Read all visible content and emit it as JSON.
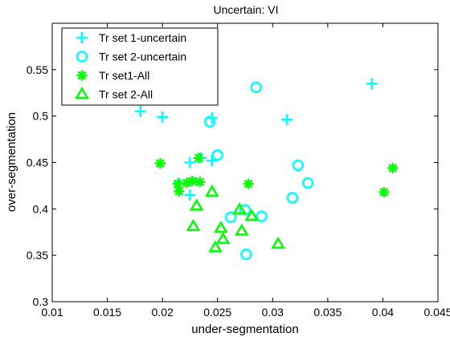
{
  "chart_data": {
    "type": "scatter",
    "title": "Uncertain: VI",
    "xlabel": "under-segmentation",
    "ylabel": "over-segmentation",
    "xlim": [
      0.01,
      0.045
    ],
    "ylim": [
      0.3,
      0.6
    ],
    "xticks": [
      0.01,
      0.015,
      0.02,
      0.025,
      0.03,
      0.035,
      0.04,
      0.045
    ],
    "xtick_labels": [
      "0.01",
      "0.015",
      "0.02",
      "0.025",
      "0.03",
      "0.035",
      "0.04",
      "0.045"
    ],
    "yticks": [
      0.3,
      0.35,
      0.4,
      0.45,
      0.5,
      0.55
    ],
    "ytick_labels": [
      "0.3",
      "0.35",
      "0.4",
      "0.45",
      "0.5",
      "0.55"
    ],
    "grid": false,
    "legend_position": "top-left",
    "series": [
      {
        "name": "Tr set 1-uncertain",
        "marker": "plus",
        "color": "#00ffff",
        "points": [
          [
            0.018,
            0.505
          ],
          [
            0.02,
            0.499
          ],
          [
            0.0245,
            0.498
          ],
          [
            0.0313,
            0.496
          ],
          [
            0.039,
            0.535
          ],
          [
            0.0225,
            0.45
          ],
          [
            0.0245,
            0.452
          ],
          [
            0.0235,
            0.455
          ],
          [
            0.0215,
            0.428
          ],
          [
            0.0225,
            0.415
          ]
        ]
      },
      {
        "name": "Tr set 2-uncertain",
        "marker": "circle",
        "color": "#00ffff",
        "points": [
          [
            0.0285,
            0.531
          ],
          [
            0.0243,
            0.494
          ],
          [
            0.025,
            0.458
          ],
          [
            0.0323,
            0.447
          ],
          [
            0.0332,
            0.428
          ],
          [
            0.0318,
            0.412
          ],
          [
            0.0275,
            0.399
          ],
          [
            0.0262,
            0.391
          ],
          [
            0.029,
            0.392
          ],
          [
            0.0276,
            0.351
          ]
        ]
      },
      {
        "name": "Tr set1-All",
        "marker": "asterisk",
        "color": "#00ff00",
        "points": [
          [
            0.0198,
            0.449
          ],
          [
            0.0233,
            0.455
          ],
          [
            0.0214,
            0.427
          ],
          [
            0.0222,
            0.428
          ],
          [
            0.0227,
            0.43
          ],
          [
            0.0234,
            0.429
          ],
          [
            0.0215,
            0.419
          ],
          [
            0.0278,
            0.427
          ],
          [
            0.0409,
            0.444
          ],
          [
            0.0401,
            0.418
          ]
        ]
      },
      {
        "name": "Tr set 2-All",
        "marker": "triangle",
        "color": "#00ff00",
        "points": [
          [
            0.0245,
            0.418
          ],
          [
            0.0231,
            0.403
          ],
          [
            0.027,
            0.399
          ],
          [
            0.0281,
            0.392
          ],
          [
            0.0228,
            0.381
          ],
          [
            0.0253,
            0.379
          ],
          [
            0.0272,
            0.376
          ],
          [
            0.0255,
            0.367
          ],
          [
            0.0248,
            0.358
          ],
          [
            0.0305,
            0.362
          ]
        ]
      }
    ]
  }
}
